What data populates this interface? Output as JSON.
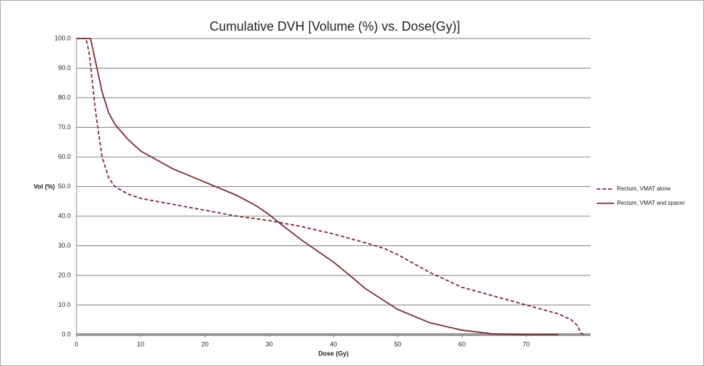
{
  "chart_data": {
    "type": "line",
    "title": "Cumulative DVH [Volume (%) vs. Dose(Gy)]",
    "x_label": "Dose (Gy)",
    "y_label": "Vol (%)",
    "series": [
      {
        "name": "Rectum,  VMAT alone",
        "color": "#7a2a2e",
        "style": "dashed",
        "x": [
          0,
          1.5,
          2,
          3,
          4,
          5,
          6,
          8,
          10,
          15,
          20,
          25,
          30,
          35,
          40,
          45,
          48,
          50,
          55,
          60,
          65,
          70,
          75,
          77,
          78,
          78.5,
          79
        ],
        "values": [
          100,
          100,
          95,
          75,
          60,
          53,
          50,
          47.5,
          46,
          44,
          42,
          40,
          38.5,
          36.5,
          34,
          31,
          29,
          27,
          21,
          16,
          13,
          10,
          7,
          5,
          3,
          0.5,
          0
        ]
      },
      {
        "name": "Rectum,  VMAT and spacer",
        "color": "#7a2a2e",
        "style": "solid",
        "x": [
          0,
          2.2,
          3,
          4,
          5,
          6,
          8,
          10,
          15,
          20,
          25,
          28,
          30,
          32,
          35,
          40,
          42,
          45,
          50,
          55,
          60,
          65,
          70,
          75
        ],
        "values": [
          100,
          100,
          92,
          82,
          75,
          71,
          66,
          62,
          56,
          51.5,
          47,
          43.5,
          40.5,
          37,
          32,
          24.5,
          21,
          15.5,
          8.5,
          4,
          1.5,
          0.2,
          0,
          0
        ]
      }
    ],
    "xlim": [
      0,
      80
    ],
    "xticks": [
      0,
      10,
      20,
      30,
      40,
      50,
      60,
      70
    ],
    "ylim": [
      0,
      100
    ],
    "yticks": [
      {
        "value": 0,
        "label": "0.0"
      },
      {
        "value": 10,
        "label": "10.0"
      },
      {
        "value": 20,
        "label": "20.0"
      },
      {
        "value": 30,
        "label": "30.0"
      },
      {
        "value": 40,
        "label": "40.0"
      },
      {
        "value": 50,
        "label": "50.0"
      },
      {
        "value": 60,
        "label": "60.0"
      },
      {
        "value": 70,
        "label": "70.0"
      },
      {
        "value": 80,
        "label": "80.0"
      },
      {
        "value": 90,
        "label": "90.0"
      },
      {
        "value": 100,
        "label": "100.0"
      }
    ],
    "grid": true,
    "legend": "right"
  }
}
